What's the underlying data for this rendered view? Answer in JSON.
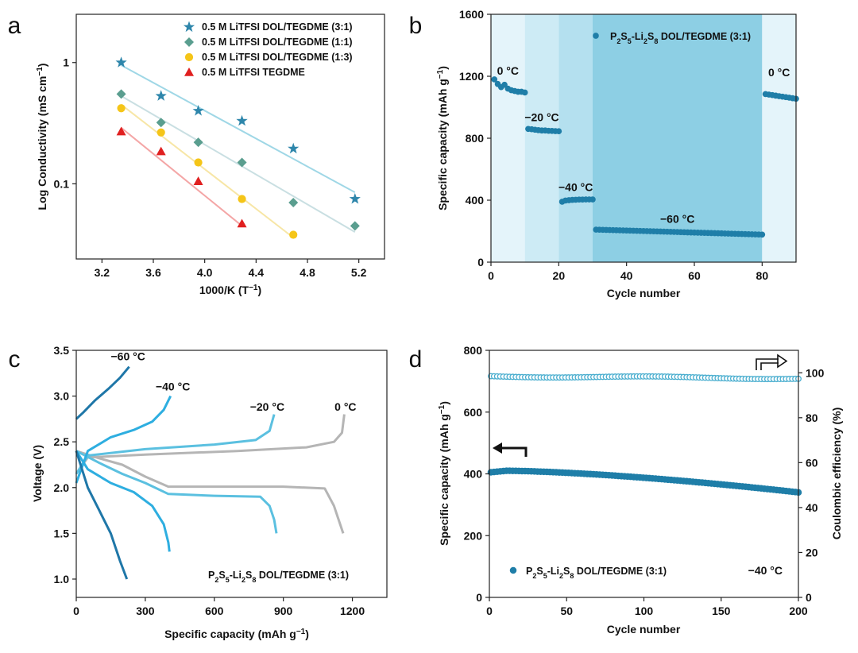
{
  "chart_data": [
    {
      "id": "a",
      "panel_label": "a",
      "type": "scatter",
      "title": "",
      "xlabel": "1000/K (T",
      "xlabel_sup": "−1",
      "xlabel_end": ")",
      "ylabel": "Log Conductivity (mS cm",
      "ylabel_sup": "−1",
      "ylabel_end": ")",
      "xlim": [
        3.0,
        5.4
      ],
      "ylim": [
        0.024,
        2.5
      ],
      "yscale": "log",
      "xticks": [
        3.2,
        3.6,
        4.0,
        4.4,
        4.8,
        5.2
      ],
      "xtick_labels": [
        "3.2",
        "3.6",
        "4.0",
        "4.4",
        "4.8",
        "5.2"
      ],
      "yticks": [
        0.1,
        1
      ],
      "ytick_labels": [
        "0.1",
        "1"
      ],
      "legend_position": "top-right",
      "series": [
        {
          "name": "0.5 M LiTFSI DOL/TEGDME (3:1)",
          "marker": "star",
          "color": "#2e86ab",
          "line_color": "#9fd7e6",
          "x": [
            3.35,
            3.66,
            3.95,
            4.29,
            4.69,
            5.17
          ],
          "y": [
            1.0,
            0.53,
            0.4,
            0.33,
            0.195,
            0.075
          ],
          "fit": [
            [
              3.35,
              0.95
            ],
            [
              5.17,
              0.085
            ]
          ]
        },
        {
          "name": "0.5 M LiTFSI DOL/TEGDME (1:1)",
          "marker": "diamond",
          "color": "#5a9e8f",
          "line_color": "#c9dfe2",
          "x": [
            3.35,
            3.66,
            3.95,
            4.29,
            4.69,
            5.17
          ],
          "y": [
            0.55,
            0.32,
            0.22,
            0.15,
            0.07,
            0.045
          ],
          "fit": [
            [
              3.35,
              0.53
            ],
            [
              5.17,
              0.04
            ]
          ]
        },
        {
          "name": "0.5 M LiTFSI DOL/TEGDME (1:3)",
          "marker": "circle",
          "color": "#f5c518",
          "line_color": "#f7e6a6",
          "x": [
            3.35,
            3.66,
            3.95,
            4.29,
            4.69
          ],
          "y": [
            0.42,
            0.265,
            0.15,
            0.075,
            0.038
          ],
          "fit": [
            [
              3.35,
              0.45
            ],
            [
              4.69,
              0.036
            ]
          ]
        },
        {
          "name": "0.5 M LiTFSI TEGDME",
          "marker": "triangle",
          "color": "#e02020",
          "line_color": "#f4a6a6",
          "x": [
            3.35,
            3.66,
            3.95,
            4.29
          ],
          "y": [
            0.27,
            0.185,
            0.105,
            0.047
          ],
          "fit": [
            [
              3.35,
              0.29
            ],
            [
              4.29,
              0.045
            ]
          ]
        }
      ]
    },
    {
      "id": "b",
      "panel_label": "b",
      "type": "scatter",
      "title": "",
      "xlabel": "Cycle number",
      "ylabel": "Specific capacity (mAh g",
      "ylabel_sup": "−1",
      "ylabel_end": ")",
      "xlim": [
        0,
        90
      ],
      "ylim": [
        0,
        1600
      ],
      "xticks": [
        0,
        20,
        40,
        60,
        80
      ],
      "xtick_labels": [
        "0",
        "20",
        "40",
        "60",
        "80"
      ],
      "yticks": [
        0,
        400,
        800,
        1200,
        1600
      ],
      "ytick_labels": [
        "0",
        "400",
        "800",
        "1200",
        "1600"
      ],
      "legend_position": "top-right",
      "legend": "P2S5-Li2S8 DOL/TEGDME (3:1)",
      "legend_parts": [
        [
          "P",
          ""
        ],
        [
          "2",
          "sub"
        ],
        [
          "S",
          ""
        ],
        [
          "5",
          "sub"
        ],
        [
          "-Li",
          ""
        ],
        [
          "2",
          "sub"
        ],
        [
          "S",
          ""
        ],
        [
          "8",
          "sub"
        ],
        [
          " DOL/TEGDME (3:1)",
          ""
        ]
      ],
      "marker_color": "#1f7ea8",
      "bands": [
        {
          "x0": 0,
          "x1": 10,
          "color": "#e4f4fa"
        },
        {
          "x0": 10,
          "x1": 20,
          "color": "#cdebf5"
        },
        {
          "x0": 20,
          "x1": 30,
          "color": "#b4e0ef"
        },
        {
          "x0": 30,
          "x1": 80,
          "color": "#8dcfe4"
        },
        {
          "x0": 80,
          "x1": 90,
          "color": "#e4f4fa"
        }
      ],
      "annotations": [
        {
          "text": "0 °C",
          "x": 5,
          "y": 1210
        },
        {
          "text": "−20 °C",
          "x": 15,
          "y": 910
        },
        {
          "text": "−40 °C",
          "x": 25,
          "y": 460
        },
        {
          "text": "−60 °C",
          "x": 55,
          "y": 255
        },
        {
          "text": "0 °C",
          "x": 85,
          "y": 1200
        }
      ],
      "segments": [
        {
          "values": [
            1180,
            1150,
            1130,
            1145,
            1120,
            1110,
            1105,
            1100,
            1100,
            1095
          ]
        },
        {
          "values": [
            860,
            858,
            855,
            852,
            850,
            850,
            848,
            847,
            846,
            845
          ]
        },
        {
          "values": [
            390,
            398,
            400,
            402,
            403,
            404,
            404,
            405,
            405,
            405
          ]
        },
        {
          "start": 31,
          "first": 210,
          "last": 178,
          "count": 50
        },
        {
          "start": 81,
          "first": 1085,
          "last": 1055,
          "count": 10
        }
      ]
    },
    {
      "id": "c",
      "panel_label": "c",
      "type": "line",
      "title": "",
      "xlabel": "Specific capacity (mAh g",
      "xlabel_sup": "−1",
      "xlabel_end": ")",
      "ylabel": "Voltage (V)",
      "xlim": [
        0,
        1350
      ],
      "ylim": [
        0.8,
        3.5
      ],
      "xticks": [
        0,
        300,
        600,
        900,
        1200
      ],
      "xtick_labels": [
        "0",
        "300",
        "600",
        "900",
        "1200"
      ],
      "yticks": [
        1.0,
        1.5,
        2.0,
        2.5,
        3.0,
        3.5
      ],
      "ytick_labels": [
        "1.0",
        "1.5",
        "2.0",
        "2.5",
        "3.0",
        "3.5"
      ],
      "legend_position": "bottom-right",
      "inset_text_parts": [
        [
          "P",
          ""
        ],
        [
          "2",
          "sub"
        ],
        [
          "S",
          ""
        ],
        [
          "5",
          "sub"
        ],
        [
          "-Li",
          ""
        ],
        [
          "2",
          "sub"
        ],
        [
          "S",
          ""
        ],
        [
          "8",
          "sub"
        ],
        [
          " DOL/TEGDME (3:1)",
          ""
        ]
      ],
      "labels": [
        {
          "text": "−60 °C",
          "x": 225,
          "y": 3.39
        },
        {
          "text": "−40 °C",
          "x": 420,
          "y": 3.06
        },
        {
          "text": "−20 °C",
          "x": 830,
          "y": 2.84
        },
        {
          "text": "0 °C",
          "x": 1170,
          "y": 2.84
        }
      ],
      "curves": [
        {
          "temp": "0 °C",
          "color": "#b5b5b5",
          "discharge": [
            [
              0,
              2.4
            ],
            [
              100,
              2.32
            ],
            [
              200,
              2.25
            ],
            [
              300,
              2.12
            ],
            [
              400,
              2.01
            ],
            [
              600,
              2.01
            ],
            [
              900,
              2.01
            ],
            [
              1080,
              1.99
            ],
            [
              1120,
              1.8
            ],
            [
              1140,
              1.65
            ],
            [
              1160,
              1.5
            ]
          ],
          "charge": [
            [
              0,
              2.15
            ],
            [
              50,
              2.33
            ],
            [
              300,
              2.36
            ],
            [
              700,
              2.4
            ],
            [
              1000,
              2.44
            ],
            [
              1120,
              2.5
            ],
            [
              1155,
              2.6
            ],
            [
              1165,
              2.8
            ]
          ]
        },
        {
          "temp": "−20 °C",
          "color": "#5bc0e0",
          "discharge": [
            [
              0,
              2.4
            ],
            [
              100,
              2.27
            ],
            [
              200,
              2.15
            ],
            [
              300,
              2.05
            ],
            [
              400,
              1.93
            ],
            [
              600,
              1.91
            ],
            [
              800,
              1.9
            ],
            [
              840,
              1.8
            ],
            [
              860,
              1.65
            ],
            [
              870,
              1.5
            ]
          ],
          "charge": [
            [
              0,
              2.15
            ],
            [
              50,
              2.35
            ],
            [
              300,
              2.42
            ],
            [
              600,
              2.47
            ],
            [
              780,
              2.52
            ],
            [
              840,
              2.62
            ],
            [
              860,
              2.8
            ]
          ]
        },
        {
          "temp": "−40 °C",
          "color": "#2eaee0",
          "discharge": [
            [
              0,
              2.4
            ],
            [
              50,
              2.2
            ],
            [
              150,
              2.05
            ],
            [
              250,
              1.95
            ],
            [
              330,
              1.8
            ],
            [
              380,
              1.6
            ],
            [
              400,
              1.4
            ],
            [
              405,
              1.3
            ]
          ],
          "charge": [
            [
              0,
              2.05
            ],
            [
              50,
              2.4
            ],
            [
              150,
              2.55
            ],
            [
              250,
              2.63
            ],
            [
              330,
              2.72
            ],
            [
              380,
              2.85
            ],
            [
              410,
              3.0
            ]
          ]
        },
        {
          "temp": "−60 °C",
          "color": "#1f77a8",
          "discharge": [
            [
              0,
              2.4
            ],
            [
              50,
              2.0
            ],
            [
              100,
              1.75
            ],
            [
              150,
              1.5
            ],
            [
              190,
              1.2
            ],
            [
              220,
              1.0
            ]
          ],
          "charge": [
            [
              0,
              2.75
            ],
            [
              30,
              2.82
            ],
            [
              80,
              2.95
            ],
            [
              140,
              3.08
            ],
            [
              190,
              3.2
            ],
            [
              230,
              3.32
            ]
          ]
        }
      ]
    },
    {
      "id": "d",
      "panel_label": "d",
      "type": "scatter",
      "title": "",
      "xlabel": "Cycle number",
      "ylabel": "Specific capacity (mAh g",
      "ylabel_sup": "−1",
      "ylabel_end": ")",
      "y2label": "Coulombic efficiency (%)",
      "xlim": [
        0,
        200
      ],
      "ylim": [
        0,
        800
      ],
      "y2lim": [
        0,
        110
      ],
      "xticks": [
        0,
        50,
        100,
        150,
        200
      ],
      "xtick_labels": [
        "0",
        "50",
        "100",
        "150",
        "200"
      ],
      "yticks": [
        0,
        200,
        400,
        600,
        800
      ],
      "ytick_labels": [
        "0",
        "200",
        "400",
        "600",
        "800"
      ],
      "y2ticks": [
        0,
        20,
        40,
        60,
        80,
        100
      ],
      "y2tick_labels": [
        "0",
        "20",
        "40",
        "60",
        "80",
        "100"
      ],
      "legend_position": "bottom-left",
      "legend_parts": [
        [
          "P",
          ""
        ],
        [
          "2",
          "sub"
        ],
        [
          "S",
          ""
        ],
        [
          "5",
          "sub"
        ],
        [
          "-Li",
          ""
        ],
        [
          "2",
          "sub"
        ],
        [
          "S",
          ""
        ],
        [
          "8",
          "sub"
        ],
        [
          " DOL/TEGDME (3:1)",
          ""
        ]
      ],
      "temp_label": "−40 °C",
      "capacity": {
        "first": 405,
        "peak": 410,
        "last": 340,
        "count": 100,
        "color": "#1f7ea8"
      },
      "efficiency": {
        "first": 98.5,
        "mid": 98.5,
        "last": 97.5,
        "count": 100,
        "color": "#4aaecf"
      }
    }
  ]
}
